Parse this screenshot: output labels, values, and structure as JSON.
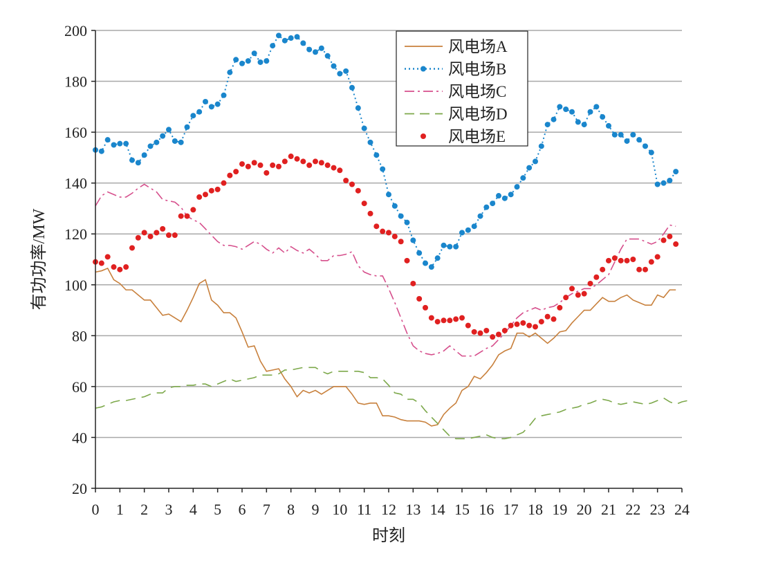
{
  "chart_data": {
    "type": "line",
    "title": "",
    "xlabel": "时刻",
    "ylabel": "有功功率/MW",
    "xlim": [
      0,
      24
    ],
    "ylim": [
      20,
      200
    ],
    "x_step_hours": 0.25,
    "x_ticks": [
      "0",
      "1",
      "2",
      "3",
      "4",
      "5",
      "6",
      "7",
      "8",
      "9",
      "10",
      "11",
      "12",
      "13",
      "14",
      "15",
      "16",
      "17",
      "18",
      "19",
      "20",
      "21",
      "22",
      "23",
      "24"
    ],
    "y_ticks": [
      "20",
      "40",
      "60",
      "80",
      "100",
      "120",
      "140",
      "160",
      "180",
      "200"
    ],
    "grid": true,
    "legend_position": "top-center",
    "series": [
      {
        "name": "风电场A",
        "style": "solid",
        "color": "#c8803c",
        "values": [
          105,
          105.5,
          106.5,
          102,
          100.5,
          98,
          98,
          96,
          94,
          94,
          91,
          88,
          88.5,
          87,
          85.5,
          90,
          95,
          100.5,
          102,
          94,
          92,
          89,
          89,
          87,
          81.5,
          75.5,
          76,
          70,
          66,
          66.5,
          67,
          63,
          60,
          56,
          58.5,
          57.5,
          58.5,
          57,
          58.5,
          60,
          60,
          60,
          57,
          53.5,
          53,
          53.5,
          53.5,
          48.5,
          48.5,
          48,
          47,
          46.5,
          46.5,
          46.5,
          46,
          44.5,
          45,
          49,
          51.5,
          53.5,
          58.5,
          60,
          64,
          63,
          65.5,
          68.5,
          72.5,
          74,
          75,
          81,
          81,
          79.5,
          81,
          79,
          77,
          79,
          81.5,
          82,
          85,
          87.5,
          90,
          90,
          92.5,
          95,
          93.5,
          93.5,
          95,
          96,
          94,
          93,
          92,
          92,
          96,
          95,
          98,
          98
        ]
      },
      {
        "name": "风电场B",
        "style": "dotted-marker",
        "color": "#1a86cc",
        "values": [
          153,
          152.5,
          157,
          155,
          155.5,
          155.5,
          149,
          148,
          151,
          154.5,
          156,
          158.5,
          161,
          156.5,
          156,
          162,
          166.5,
          168,
          172,
          170,
          171,
          174.5,
          183.5,
          188.5,
          187,
          188,
          191,
          187.5,
          188,
          194,
          198,
          196,
          197,
          197.5,
          195,
          192.5,
          191.5,
          193,
          190,
          186,
          183,
          184,
          177.5,
          169.5,
          161.5,
          156,
          151,
          145.5,
          135.5,
          131,
          127,
          124.5,
          117.5,
          112.5,
          108.5,
          107,
          110.5,
          115.5,
          115,
          115,
          120.5,
          121.5,
          123,
          127,
          130.5,
          132,
          135,
          134,
          135.5,
          138.5,
          142,
          146,
          148.5,
          154.5,
          163,
          165,
          170,
          169,
          168,
          164,
          163,
          168,
          170,
          166,
          162.5,
          159,
          159,
          156.5,
          159,
          157,
          154.5,
          152,
          139.5,
          140,
          141,
          144.5
        ]
      },
      {
        "name": "风电场C",
        "style": "dashdot",
        "color": "#d64f8c",
        "values": [
          131,
          135,
          136.5,
          135.5,
          134.5,
          134.5,
          136,
          138,
          139.5,
          138,
          136.5,
          133.5,
          133,
          132.5,
          130.5,
          127,
          125.5,
          124.5,
          122,
          119.5,
          117,
          115.5,
          115.5,
          115,
          114,
          115.5,
          117,
          116,
          114,
          112.5,
          114.5,
          112.5,
          115,
          113.5,
          112.5,
          114,
          112,
          109.5,
          109.5,
          111.5,
          111.5,
          112,
          113,
          107.5,
          105,
          104,
          103.5,
          103.5,
          98.5,
          93,
          87,
          81,
          76,
          74,
          73,
          72.5,
          73,
          74,
          76,
          74,
          72,
          72,
          72,
          73.5,
          75,
          76,
          78.5,
          81,
          84,
          87,
          89,
          90,
          91,
          90,
          91,
          91.5,
          93,
          95,
          96.5,
          97.5,
          98.5,
          98.5,
          100,
          102,
          104,
          109,
          114,
          118,
          118,
          118,
          117,
          116,
          117,
          120,
          123.5,
          123
        ]
      },
      {
        "name": "风电场D",
        "style": "dashed",
        "color": "#7ca84a",
        "values": [
          51.5,
          52,
          53,
          54,
          54.5,
          54.5,
          55,
          55.5,
          56,
          57,
          57.5,
          57.5,
          59.5,
          60,
          60,
          60.5,
          60.5,
          61,
          61,
          60,
          61,
          62,
          63,
          62,
          62.5,
          63,
          63.5,
          64.5,
          64.5,
          64.5,
          65,
          66.5,
          66.5,
          67,
          67.5,
          67.5,
          67.5,
          66,
          65,
          66,
          66,
          66,
          66,
          66,
          65.5,
          63.5,
          63.5,
          63,
          60.5,
          57.5,
          57,
          55,
          55,
          53.5,
          50.5,
          48,
          45.5,
          43,
          40.5,
          39.5,
          39.5,
          39.5,
          40,
          40.5,
          41,
          40,
          39.5,
          39.5,
          40,
          41,
          42,
          44.5,
          47.5,
          48.5,
          49,
          49.5,
          50,
          51,
          51.5,
          52,
          53,
          53.5,
          54.5,
          55,
          54.5,
          53.5,
          53,
          53.5,
          54,
          53.5,
          53,
          53.5,
          54.5,
          55.5,
          54,
          53,
          54,
          54.5
        ]
      },
      {
        "name": "风电场E",
        "style": "markers",
        "color": "#e02020",
        "values": [
          109,
          108.5,
          111,
          107,
          106,
          107,
          114.5,
          118.5,
          120.5,
          119,
          120.5,
          122,
          119.5,
          119.5,
          127,
          127,
          129.5,
          134.5,
          135.5,
          137,
          137.5,
          140,
          143,
          144.5,
          147.5,
          146.5,
          148,
          147,
          144,
          147,
          146.5,
          148.5,
          150.5,
          149.5,
          148.5,
          147,
          148.5,
          148,
          147,
          146,
          145,
          141,
          139.5,
          137,
          132,
          128,
          123,
          121,
          120.5,
          119,
          117,
          109.5,
          100.5,
          94.5,
          91,
          87,
          85.5,
          86,
          86,
          86.5,
          87,
          84,
          81.5,
          81,
          82,
          79.5,
          80.5,
          82,
          84,
          84.5,
          85,
          84,
          83.5,
          85.5,
          87.5,
          86.5,
          91,
          95,
          98.5,
          96,
          96.5,
          100.5,
          103,
          106,
          109.5,
          110.5,
          109.5,
          109.5,
          110,
          106,
          106,
          109,
          111,
          117.5,
          119,
          116
        ]
      }
    ]
  }
}
